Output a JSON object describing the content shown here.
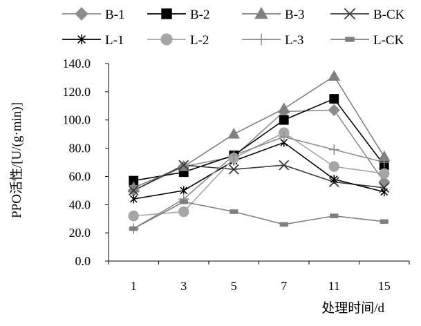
{
  "chart_data": {
    "type": "line",
    "title": "",
    "xlabel": "处理时间/d",
    "ylabel": "PPO活性/[U/(g·min)]",
    "categories": [
      "1",
      "3",
      "5",
      "7",
      "11",
      "15"
    ],
    "ylim": [
      0,
      140
    ],
    "yticks": [
      "0.0",
      "20.0",
      "40.0",
      "60.0",
      "80.0",
      "100.0",
      "120.0",
      "140.0"
    ],
    "grid": false,
    "legend_position": "top",
    "series": [
      {
        "name": "B-1",
        "marker": "diamond",
        "color": "#8c8c8c",
        "values": [
          50,
          67,
          74,
          106,
          107,
          56
        ]
      },
      {
        "name": "B-2",
        "marker": "square",
        "color": "#000000",
        "values": [
          57,
          63,
          75,
          100,
          115,
          68
        ]
      },
      {
        "name": "B-3",
        "marker": "triangle",
        "color": "#808080",
        "values": [
          52,
          67,
          90,
          108,
          131,
          74
        ]
      },
      {
        "name": "B-CK",
        "marker": "x",
        "color": "#3a3a3a",
        "values": [
          50,
          68,
          65,
          68,
          56,
          52
        ]
      },
      {
        "name": "L-1",
        "marker": "star",
        "color": "#000000",
        "values": [
          44,
          50,
          71,
          84,
          58,
          49
        ]
      },
      {
        "name": "L-2",
        "marker": "circle",
        "color": "#a6a6a6",
        "values": [
          32,
          35,
          73,
          91,
          67,
          62
        ]
      },
      {
        "name": "L-3",
        "marker": "plus",
        "color": "#8c8c8c",
        "values": [
          23,
          44,
          75,
          88,
          79,
          70
        ]
      },
      {
        "name": "L-CK",
        "marker": "dash",
        "color": "#7f7f7f",
        "values": [
          23,
          42,
          35,
          26,
          32,
          28
        ]
      }
    ]
  }
}
